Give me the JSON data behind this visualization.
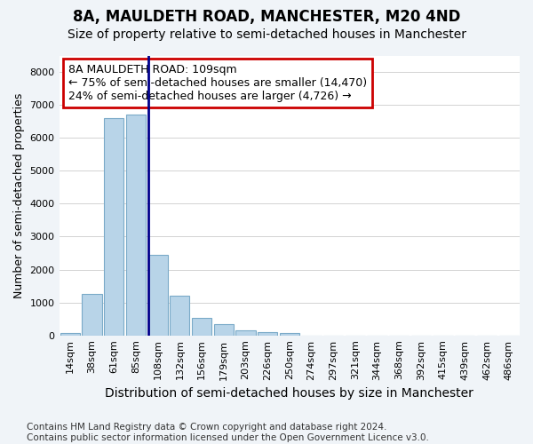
{
  "title_line1": "8A, MAULDETH ROAD, MANCHESTER, M20 4ND",
  "title_line2": "Size of property relative to semi-detached houses in Manchester",
  "xlabel": "Distribution of semi-detached houses by size in Manchester",
  "ylabel": "Number of semi-detached properties",
  "footnote": "Contains HM Land Registry data © Crown copyright and database right 2024.\nContains public sector information licensed under the Open Government Licence v3.0.",
  "annotation_title": "8A MAULDETH ROAD: 109sqm",
  "annotation_line1": "← 75% of semi-detached houses are smaller (14,470)",
  "annotation_line2": "24% of semi-detached houses are larger (4,726) →",
  "bar_color": "#b8d4e8",
  "bar_edge_color": "#7aaac8",
  "highlight_bar_edge_color": "#00008b",
  "categories": [
    "14sqm",
    "38sqm",
    "61sqm",
    "85sqm",
    "108sqm",
    "132sqm",
    "156sqm",
    "179sqm",
    "203sqm",
    "226sqm",
    "250sqm",
    "274sqm",
    "297sqm",
    "321sqm",
    "344sqm",
    "368sqm",
    "392sqm",
    "415sqm",
    "439sqm",
    "462sqm",
    "486sqm"
  ],
  "values": [
    65,
    1250,
    6600,
    6700,
    2450,
    1200,
    530,
    330,
    165,
    110,
    65,
    0,
    0,
    0,
    0,
    0,
    0,
    0,
    0,
    0,
    0
  ],
  "highlight_index": 4,
  "ylim": [
    0,
    8500
  ],
  "yticks": [
    0,
    1000,
    2000,
    3000,
    4000,
    5000,
    6000,
    7000,
    8000
  ],
  "grid_color": "#cccccc",
  "bg_color": "#f0f4f8",
  "plot_bg_color": "#ffffff",
  "annotation_box_color": "#ffffff",
  "annotation_box_edge_color": "#cc0000",
  "title_fontsize": 12,
  "subtitle_fontsize": 10,
  "tick_fontsize": 8,
  "ylabel_fontsize": 9,
  "xlabel_fontsize": 10,
  "annotation_fontsize": 9,
  "footnote_fontsize": 7.5
}
